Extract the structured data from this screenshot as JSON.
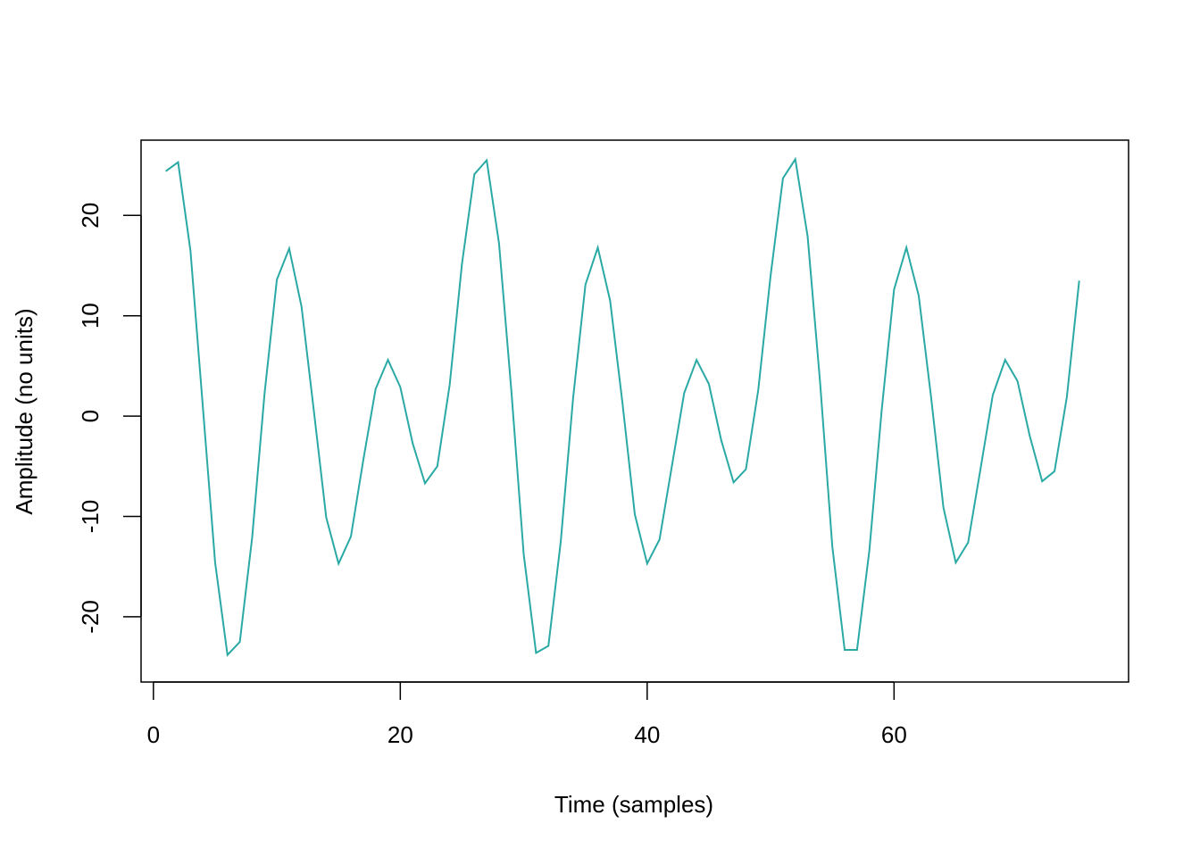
{
  "chart_data": {
    "type": "line",
    "title": "",
    "xlabel": "Time (samples)",
    "ylabel": "Amplitude (no units)",
    "xlim": [
      -1,
      79
    ],
    "ylim": [
      -26.5,
      27.5
    ],
    "xticks": [
      0,
      20,
      40,
      60
    ],
    "yticks": [
      -20,
      -10,
      0,
      10,
      20
    ],
    "grid": false,
    "legend": "none",
    "colors": {
      "line": "#2aa9a5",
      "axis": "#000000",
      "background": "#ffffff"
    },
    "series": [
      {
        "x": [
          1,
          2,
          3,
          4,
          5,
          6,
          7,
          8,
          9,
          10,
          11,
          12,
          13,
          14,
          15,
          16,
          17,
          18,
          19,
          20,
          21,
          22,
          23,
          24,
          25,
          26,
          27,
          28,
          29,
          30,
          31,
          32,
          33,
          34,
          35,
          36,
          37,
          38,
          39,
          40,
          41,
          42,
          43,
          44,
          45,
          46,
          47,
          48,
          49,
          50,
          51,
          52,
          53,
          54,
          55,
          56,
          57,
          58,
          59,
          60,
          61,
          62,
          63,
          64,
          65,
          66,
          67,
          68,
          69,
          70,
          71,
          72,
          73,
          74,
          75
        ],
        "values": [
          24.4,
          25.3,
          16.5,
          1.0,
          -14.6,
          -23.8,
          -22.5,
          -12.1,
          2.2,
          13.6,
          16.7,
          10.9,
          0.5,
          -10.1,
          -14.7,
          -12.0,
          -4.4,
          2.7,
          5.6,
          2.9,
          -2.7,
          -6.7,
          -5.0,
          3.1,
          15.2,
          24.1,
          25.5,
          17.2,
          2.5,
          -13.8,
          -23.6,
          -22.9,
          -12.5,
          1.8,
          13.1,
          16.8,
          11.5,
          1.3,
          -9.8,
          -14.7,
          -12.3,
          -5.0,
          2.3,
          5.6,
          3.2,
          -2.4,
          -6.6,
          -5.3,
          2.6,
          14.0,
          23.7,
          25.6,
          17.9,
          3.5,
          -13.0,
          -23.3,
          -23.3,
          -13.4,
          0.6,
          12.6,
          16.8,
          12.0,
          1.9,
          -9.1,
          -14.6,
          -12.6,
          -5.3,
          2.1,
          5.6,
          3.5,
          -2.0,
          -6.5,
          -5.5,
          1.9,
          13.5
        ]
      }
    ]
  }
}
